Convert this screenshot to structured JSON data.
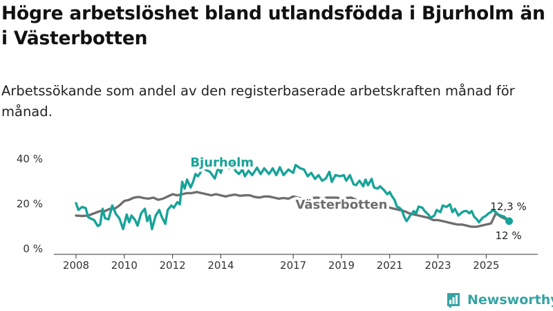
{
  "header": {
    "title": "Högre arbetslöshet bland utlandsfödda i Bjurholm än i Västerbotten",
    "subtitle": "Arbetssökande som andel av den registerbaserade arbetskraften månad för månad."
  },
  "brand": {
    "name": "Newsworthy",
    "icon": "bar-chart-icon",
    "color": "#36a3a4"
  },
  "chart_data": {
    "type": "line",
    "title": "Högre arbetslöshet bland utlandsfödda i Bjurholm än i Västerbotten",
    "subtitle": "Arbetssökande som andel av den registerbaserade arbetskraften månad för månad.",
    "xlabel": "",
    "ylabel": "",
    "xlim": [
      2008,
      2026.25
    ],
    "ylim": [
      0,
      40
    ],
    "x_ticks": [
      2008,
      2010,
      2012,
      2014,
      2017,
      2019,
      2021,
      2023,
      2025
    ],
    "y_ticks": [
      {
        "value": 0,
        "label": "0 %"
      },
      {
        "value": 20,
        "label": "20 %"
      },
      {
        "value": 40,
        "label": "40 %"
      }
    ],
    "grid": false,
    "series": [
      {
        "name": "Bjurholm",
        "color": "#17a398",
        "end_label": "12 %",
        "points": [
          [
            2008.0,
            20.0
          ],
          [
            2008.1,
            17.0
          ],
          [
            2008.25,
            18.3
          ],
          [
            2008.4,
            17.8
          ],
          [
            2008.5,
            13.8
          ],
          [
            2008.6,
            13.2
          ],
          [
            2008.75,
            12.5
          ],
          [
            2008.9,
            9.8
          ],
          [
            2009.0,
            10.5
          ],
          [
            2009.1,
            17.5
          ],
          [
            2009.2,
            13.3
          ],
          [
            2009.35,
            12.8
          ],
          [
            2009.5,
            19.0
          ],
          [
            2009.65,
            15.2
          ],
          [
            2009.8,
            13.2
          ],
          [
            2009.95,
            8.5
          ],
          [
            2010.1,
            15.0
          ],
          [
            2010.2,
            11.5
          ],
          [
            2010.3,
            14.5
          ],
          [
            2010.45,
            12.5
          ],
          [
            2010.55,
            10.0
          ],
          [
            2010.7,
            15.5
          ],
          [
            2010.85,
            17.5
          ],
          [
            2010.95,
            12.0
          ],
          [
            2011.05,
            14.5
          ],
          [
            2011.15,
            8.5
          ],
          [
            2011.3,
            14.5
          ],
          [
            2011.45,
            17.0
          ],
          [
            2011.55,
            14.0
          ],
          [
            2011.7,
            10.8
          ],
          [
            2011.8,
            17.0
          ],
          [
            2011.95,
            19.0
          ],
          [
            2012.05,
            18.0
          ],
          [
            2012.2,
            20.5
          ],
          [
            2012.3,
            19.5
          ],
          [
            2012.4,
            29.5
          ],
          [
            2012.5,
            26.5
          ],
          [
            2012.6,
            30.5
          ],
          [
            2012.75,
            27.0
          ],
          [
            2012.85,
            29.5
          ],
          [
            2012.95,
            33.0
          ],
          [
            2013.05,
            32.0
          ],
          [
            2013.15,
            33.5
          ],
          [
            2013.25,
            36.5
          ],
          [
            2013.35,
            35.0
          ],
          [
            2013.55,
            34.0
          ],
          [
            2013.75,
            31.0
          ],
          [
            2013.9,
            36.0
          ],
          [
            2014.0,
            33.5
          ],
          [
            2014.1,
            37.0
          ],
          [
            2014.35,
            35.5
          ],
          [
            2014.5,
            38.0
          ],
          [
            2014.6,
            34.5
          ],
          [
            2014.75,
            33.0
          ],
          [
            2014.9,
            35.0
          ],
          [
            2015.0,
            32.0
          ],
          [
            2015.15,
            34.5
          ],
          [
            2015.3,
            32.5
          ],
          [
            2015.5,
            35.8
          ],
          [
            2015.65,
            33.0
          ],
          [
            2015.8,
            35.5
          ],
          [
            2016.0,
            33.0
          ],
          [
            2016.15,
            35.5
          ],
          [
            2016.3,
            32.5
          ],
          [
            2016.45,
            36.0
          ],
          [
            2016.6,
            32.5
          ],
          [
            2016.8,
            35.0
          ],
          [
            2017.0,
            33.5
          ],
          [
            2017.1,
            37.0
          ],
          [
            2017.3,
            35.5
          ],
          [
            2017.45,
            35.0
          ],
          [
            2017.6,
            32.0
          ],
          [
            2017.75,
            33.5
          ],
          [
            2017.9,
            30.8
          ],
          [
            2018.05,
            32.5
          ],
          [
            2018.2,
            30.0
          ],
          [
            2018.35,
            31.0
          ],
          [
            2018.5,
            34.0
          ],
          [
            2018.6,
            29.5
          ],
          [
            2018.75,
            32.5
          ],
          [
            2018.95,
            32.0
          ],
          [
            2019.1,
            32.5
          ],
          [
            2019.2,
            30.0
          ],
          [
            2019.35,
            32.5
          ],
          [
            2019.5,
            28.5
          ],
          [
            2019.6,
            28.0
          ],
          [
            2019.75,
            30.0
          ],
          [
            2019.9,
            27.5
          ],
          [
            2020.0,
            30.5
          ],
          [
            2020.1,
            28.0
          ],
          [
            2020.25,
            30.8
          ],
          [
            2020.35,
            27.0
          ],
          [
            2020.5,
            26.5
          ],
          [
            2020.6,
            27.5
          ],
          [
            2020.75,
            26.0
          ],
          [
            2020.9,
            24.0
          ],
          [
            2021.0,
            25.0
          ],
          [
            2021.1,
            23.0
          ],
          [
            2021.2,
            21.5
          ],
          [
            2021.3,
            18.5
          ],
          [
            2021.4,
            18.0
          ],
          [
            2021.5,
            17.0
          ],
          [
            2021.6,
            14.0
          ],
          [
            2021.7,
            12.0
          ],
          [
            2021.85,
            14.5
          ],
          [
            2022.0,
            16.5
          ],
          [
            2022.1,
            15.5
          ],
          [
            2022.2,
            18.5
          ],
          [
            2022.35,
            18.0
          ],
          [
            2022.45,
            16.5
          ],
          [
            2022.6,
            15.0
          ],
          [
            2022.7,
            13.5
          ],
          [
            2022.85,
            14.5
          ],
          [
            2022.95,
            17.0
          ],
          [
            2023.1,
            16.0
          ],
          [
            2023.2,
            19.0
          ],
          [
            2023.35,
            18.3
          ],
          [
            2023.5,
            19.5
          ],
          [
            2023.6,
            16.0
          ],
          [
            2023.7,
            17.5
          ],
          [
            2023.85,
            14.5
          ],
          [
            2024.0,
            16.0
          ],
          [
            2024.1,
            16.5
          ],
          [
            2024.2,
            16.5
          ],
          [
            2024.3,
            15.5
          ],
          [
            2024.4,
            16.5
          ],
          [
            2024.5,
            14.0
          ],
          [
            2024.6,
            13.0
          ],
          [
            2024.7,
            11.5
          ],
          [
            2024.85,
            13.5
          ],
          [
            2025.0,
            14.5
          ],
          [
            2025.1,
            15.5
          ],
          [
            2025.2,
            16.0
          ],
          [
            2025.25,
            17.0
          ],
          [
            2025.4,
            16.0
          ],
          [
            2025.5,
            15.0
          ],
          [
            2025.6,
            14.5
          ],
          [
            2025.75,
            14.0
          ],
          [
            2025.85,
            13.0
          ],
          [
            2025.95,
            12.0
          ]
        ]
      },
      {
        "name": "Västerbotten",
        "color": "#6e6e6e",
        "end_label": "12,3 %",
        "points": [
          [
            2008.0,
            14.5
          ],
          [
            2008.25,
            14.3
          ],
          [
            2008.5,
            14.5
          ],
          [
            2008.75,
            15.5
          ],
          [
            2009.0,
            16.5
          ],
          [
            2009.2,
            16.5
          ],
          [
            2009.4,
            17.5
          ],
          [
            2009.6,
            17.5
          ],
          [
            2009.8,
            19.0
          ],
          [
            2010.0,
            21.0
          ],
          [
            2010.2,
            21.5
          ],
          [
            2010.4,
            22.5
          ],
          [
            2010.6,
            22.8
          ],
          [
            2010.8,
            22.3
          ],
          [
            2011.0,
            22.0
          ],
          [
            2011.2,
            22.5
          ],
          [
            2011.4,
            21.5
          ],
          [
            2011.6,
            22.0
          ],
          [
            2011.8,
            23.0
          ],
          [
            2012.0,
            24.0
          ],
          [
            2012.2,
            23.5
          ],
          [
            2012.4,
            24.0
          ],
          [
            2012.6,
            24.5
          ],
          [
            2012.8,
            24.5
          ],
          [
            2013.0,
            25.0
          ],
          [
            2013.2,
            24.5
          ],
          [
            2013.4,
            24.0
          ],
          [
            2013.6,
            23.5
          ],
          [
            2013.8,
            24.0
          ],
          [
            2014.0,
            23.5
          ],
          [
            2014.2,
            23.0
          ],
          [
            2014.4,
            23.5
          ],
          [
            2014.6,
            23.8
          ],
          [
            2014.8,
            23.3
          ],
          [
            2015.0,
            23.5
          ],
          [
            2015.2,
            23.5
          ],
          [
            2015.4,
            22.8
          ],
          [
            2015.6,
            22.5
          ],
          [
            2015.8,
            23.0
          ],
          [
            2016.0,
            23.0
          ],
          [
            2016.2,
            22.5
          ],
          [
            2016.4,
            22.0
          ],
          [
            2016.6,
            22.3
          ],
          [
            2016.8,
            22.0
          ],
          [
            2017.0,
            23.0
          ],
          [
            2017.2,
            22.5
          ],
          [
            2017.4,
            22.0
          ],
          [
            2017.6,
            22.5
          ],
          [
            2017.8,
            22.3
          ],
          [
            2018.0,
            22.5
          ],
          [
            2018.2,
            22.0
          ],
          [
            2018.4,
            22.5
          ],
          [
            2018.6,
            22.5
          ],
          [
            2018.8,
            22.5
          ],
          [
            2019.0,
            22.0
          ],
          [
            2019.2,
            22.3
          ],
          [
            2019.4,
            22.5
          ],
          [
            2019.6,
            21.5
          ],
          [
            2019.8,
            21.0
          ],
          [
            2020.0,
            21.0
          ],
          [
            2020.2,
            20.5
          ],
          [
            2020.4,
            20.0
          ],
          [
            2020.6,
            19.8
          ],
          [
            2020.8,
            19.0
          ],
          [
            2021.0,
            18.0
          ],
          [
            2021.2,
            17.5
          ],
          [
            2021.4,
            17.0
          ],
          [
            2021.6,
            16.5
          ],
          [
            2021.8,
            15.5
          ],
          [
            2022.0,
            15.0
          ],
          [
            2022.2,
            14.5
          ],
          [
            2022.4,
            14.0
          ],
          [
            2022.6,
            13.5
          ],
          [
            2022.8,
            12.5
          ],
          [
            2023.0,
            12.5
          ],
          [
            2023.2,
            12.0
          ],
          [
            2023.4,
            11.5
          ],
          [
            2023.6,
            11.0
          ],
          [
            2023.8,
            10.5
          ],
          [
            2024.0,
            10.5
          ],
          [
            2024.2,
            10.0
          ],
          [
            2024.4,
            9.5
          ],
          [
            2024.6,
            9.5
          ],
          [
            2024.8,
            10.0
          ],
          [
            2025.0,
            10.5
          ],
          [
            2025.2,
            11.0
          ],
          [
            2025.4,
            15.5
          ],
          [
            2025.6,
            14.0
          ],
          [
            2025.8,
            13.0
          ],
          [
            2025.95,
            12.3
          ]
        ]
      }
    ],
    "annotations": [
      {
        "text": "Bjurholm",
        "series": "Bjurholm",
        "anchor": [
          2014.05,
          38.5
        ]
      },
      {
        "text": "Västerbotten",
        "series": "Västerbotten",
        "anchor": [
          2019.0,
          19.7
        ]
      }
    ]
  }
}
